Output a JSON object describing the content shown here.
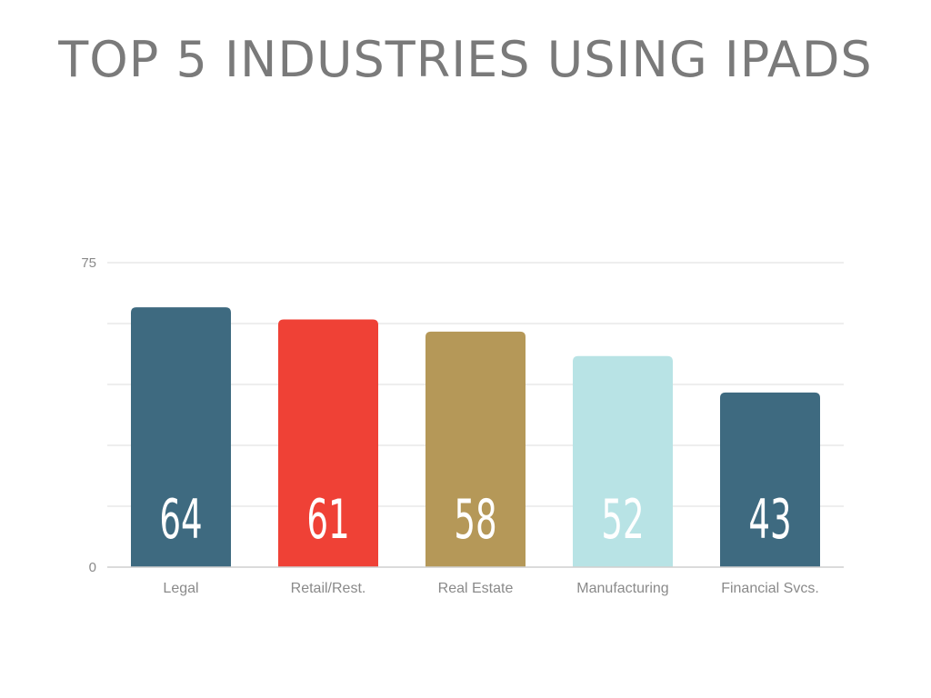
{
  "chart_data": {
    "type": "bar",
    "title": "TOP 5 INDUSTRIES USING IPADS",
    "categories": [
      "Legal",
      "Retail/Rest.",
      "Real Estate",
      "Manufacturing",
      "Financial Svcs."
    ],
    "values": [
      64,
      61,
      58,
      52,
      43
    ],
    "colors": [
      "#3e6a80",
      "#ef4136",
      "#b59858",
      "#b8e3e5",
      "#3e6a80"
    ],
    "ylim": [
      0,
      75
    ],
    "y_tick_labels": [
      "0",
      "75"
    ],
    "gridline_values": [
      0,
      15,
      30,
      45,
      60,
      75
    ],
    "grid": true,
    "legend": "none",
    "data_labels": "inside-bottom"
  }
}
